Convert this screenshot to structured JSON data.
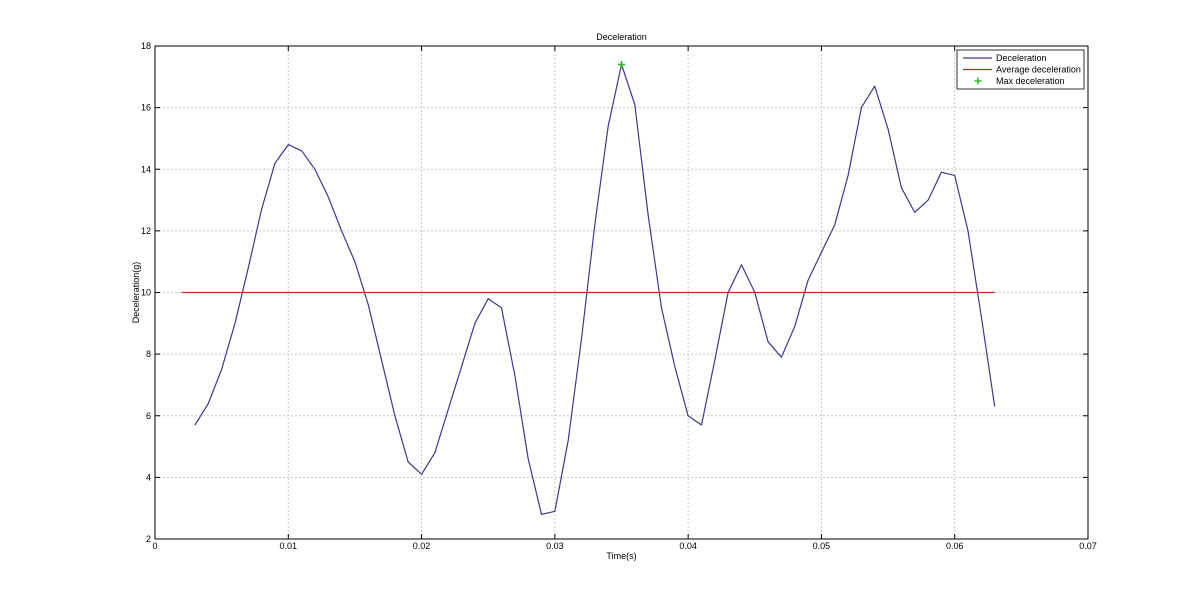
{
  "chart_data": {
    "type": "line",
    "title": "Deceleration",
    "xlabel": "Time(s)",
    "ylabel": "Deceleration(g)",
    "xlim": [
      0,
      0.07
    ],
    "ylim": [
      2,
      18
    ],
    "xticks": [
      0,
      0.01,
      0.02,
      0.03,
      0.04,
      0.05,
      0.06,
      0.07
    ],
    "xtick_labels": [
      "0",
      "0.01",
      "0.02",
      "0.03",
      "0.04",
      "0.05",
      "0.06",
      "0.07"
    ],
    "yticks": [
      2,
      4,
      6,
      8,
      10,
      12,
      14,
      16,
      18
    ],
    "ytick_labels": [
      "2",
      "4",
      "6",
      "8",
      "10",
      "12",
      "14",
      "16",
      "18"
    ],
    "grid": true,
    "legend_position": "top-right",
    "series": [
      {
        "name": "Deceleration",
        "kind": "line",
        "color": "#3a3a8c",
        "x": [
          0.003,
          0.004,
          0.005,
          0.006,
          0.007,
          0.008,
          0.009,
          0.01,
          0.011,
          0.012,
          0.013,
          0.014,
          0.015,
          0.016,
          0.017,
          0.018,
          0.019,
          0.02,
          0.021,
          0.022,
          0.023,
          0.024,
          0.025,
          0.026,
          0.027,
          0.028,
          0.029,
          0.03,
          0.031,
          0.032,
          0.033,
          0.034,
          0.035,
          0.036,
          0.037,
          0.038,
          0.039,
          0.04,
          0.041,
          0.042,
          0.043,
          0.044,
          0.045,
          0.046,
          0.047,
          0.048,
          0.049,
          0.05,
          0.051,
          0.052,
          0.053,
          0.054,
          0.055,
          0.056,
          0.057,
          0.058,
          0.059,
          0.06,
          0.061,
          0.062,
          0.063
        ],
        "y": [
          5.7,
          6.4,
          7.5,
          9.0,
          10.8,
          12.7,
          14.2,
          14.8,
          14.6,
          14.0,
          13.1,
          12.0,
          11.0,
          9.6,
          7.8,
          6.0,
          4.5,
          4.1,
          4.8,
          6.2,
          7.6,
          9.0,
          9.8,
          9.5,
          7.3,
          4.6,
          2.8,
          2.9,
          5.2,
          8.5,
          12.2,
          15.4,
          17.4,
          16.1,
          12.5,
          9.5,
          7.6,
          6.0,
          5.7,
          7.8,
          10.0,
          10.9,
          10.0,
          8.4,
          7.9,
          8.9,
          10.4,
          11.3,
          12.2,
          13.8,
          16.0,
          16.7,
          15.3,
          13.4,
          12.6,
          13.0,
          13.9,
          13.8,
          12.0,
          9.2,
          6.3
        ]
      },
      {
        "name": "Average deceleration",
        "kind": "line",
        "color": "#cc2222",
        "x": [
          0.002,
          0.063
        ],
        "y": [
          10,
          10
        ]
      },
      {
        "name": "Max deceleration",
        "kind": "marker",
        "color": "#22bb22",
        "x": [
          0.035
        ],
        "y": [
          17.4
        ]
      }
    ]
  }
}
